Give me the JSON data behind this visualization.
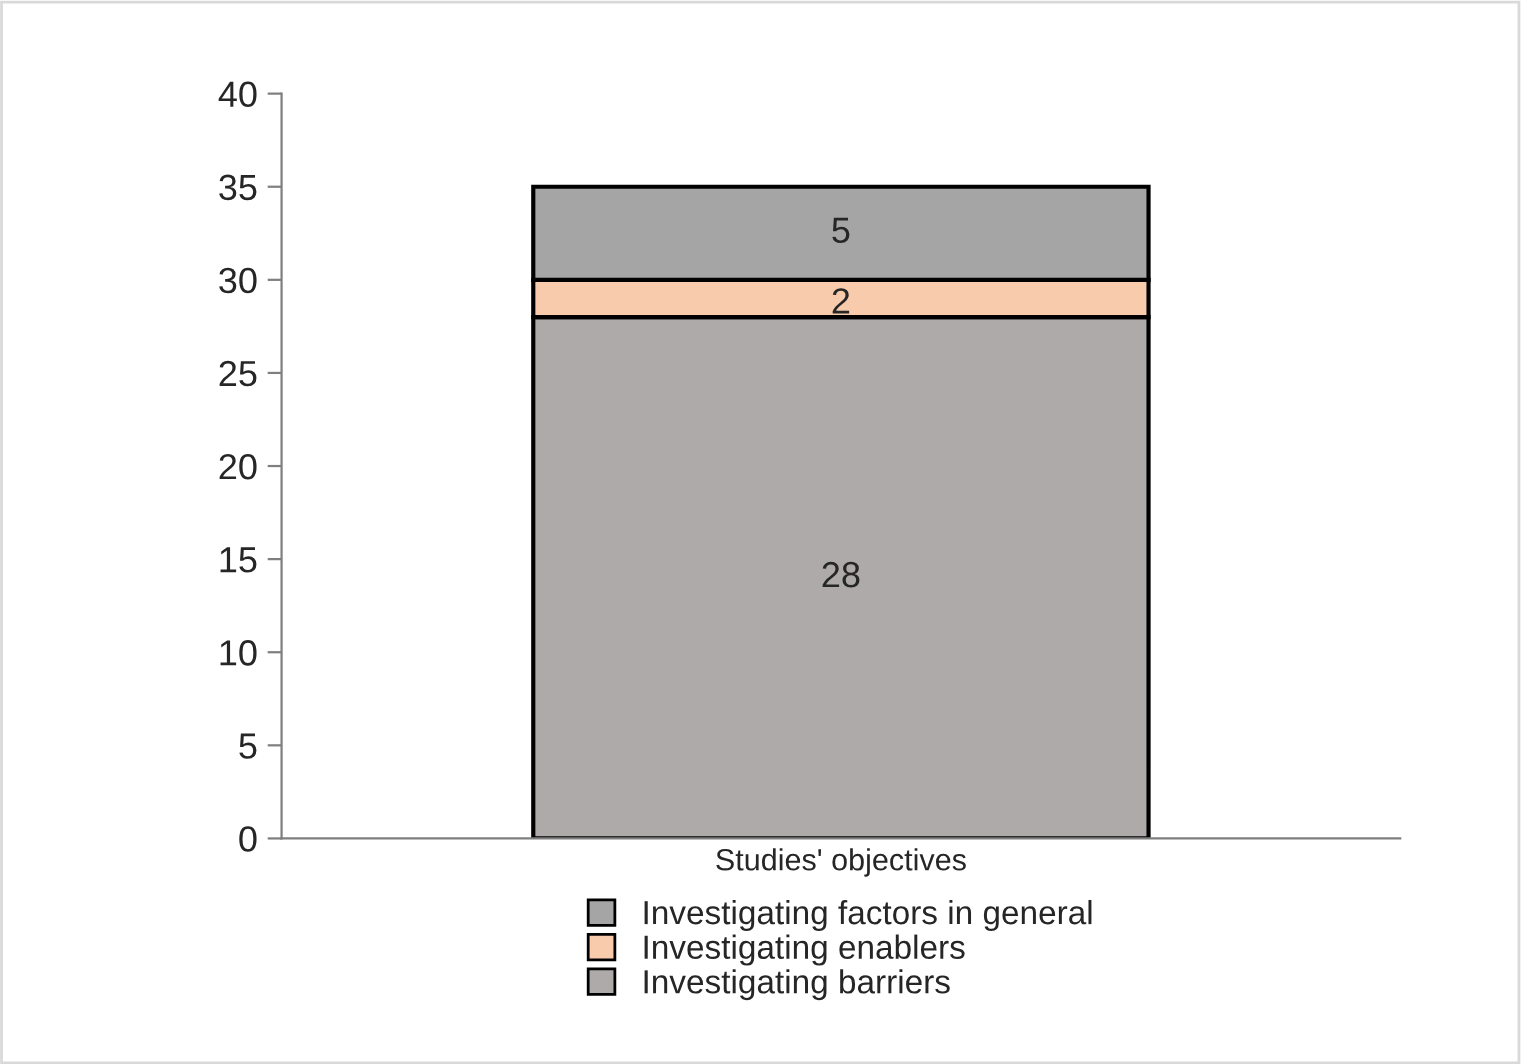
{
  "chart_data": {
    "type": "bar",
    "stacked": true,
    "categories": [
      "Studies' objectives"
    ],
    "series": [
      {
        "name": "Investigating barriers",
        "color": "#aeaaaa",
        "values": [
          28
        ]
      },
      {
        "name": "Investigating enablers",
        "color": "#f8cbad",
        "values": [
          2
        ]
      },
      {
        "name": "Investigating factors in general",
        "color": "#a5a5a5",
        "values": [
          5
        ]
      }
    ],
    "ylim": [
      0,
      40
    ],
    "yticks": [
      0,
      5,
      10,
      15,
      20,
      25,
      30,
      35,
      40
    ],
    "data_labels": true,
    "grid": false,
    "legend": "bottom"
  }
}
